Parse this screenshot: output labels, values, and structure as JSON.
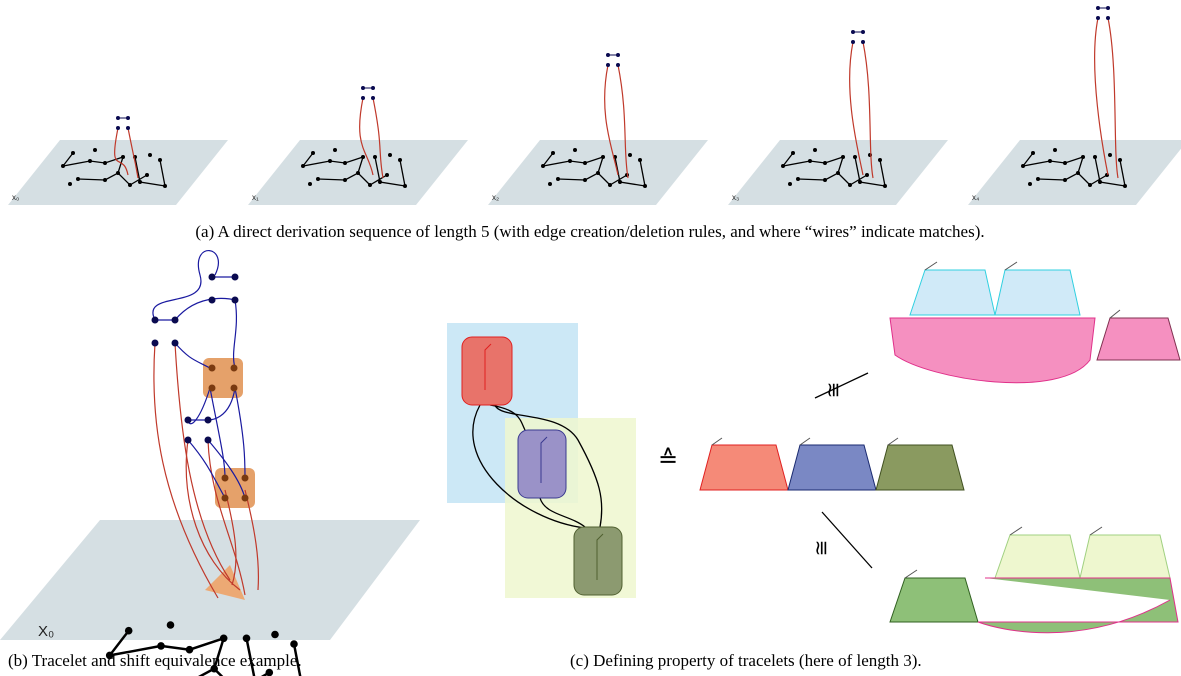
{
  "panel_a": {
    "caption": "(a)  A direct derivation sequence of length 5 (with edge creation/deletion rules, and where “wires” indicate matches).",
    "frame_labels": [
      "x₀",
      "x₁",
      "x₂",
      "x₃",
      "x₄"
    ]
  },
  "panel_b": {
    "caption": "(b)  Tracelet and shift equivalence example.",
    "plane_label": "X₀"
  },
  "panel_c": {
    "caption": "(c)  Defining property of tracelets (here of length 3).",
    "equiv_symbol": "≙",
    "iso_top": "≅",
    "iso_bottom": "≅"
  }
}
